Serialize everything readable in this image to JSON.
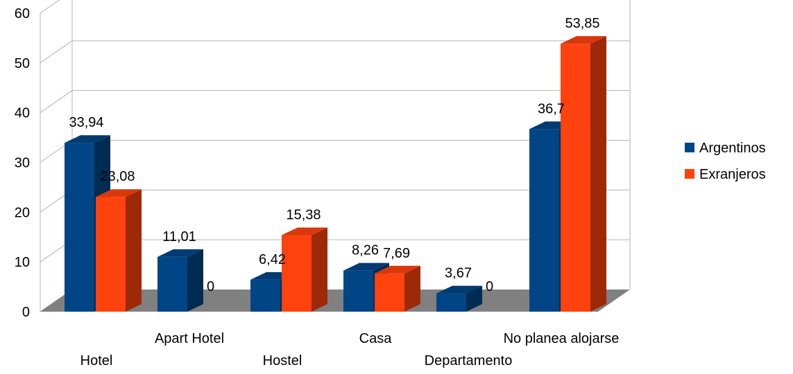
{
  "chart_data": {
    "type": "bar",
    "categories": [
      "Hotel",
      "Apart Hotel",
      "Hostel",
      "Casa",
      "Departamento",
      "No planea alojarse"
    ],
    "series": [
      {
        "name": "Argentinos",
        "values": [
          33.94,
          11.01,
          6.42,
          8.26,
          3.67,
          36.7
        ],
        "labels": [
          "33,94",
          "11,01",
          "6,42",
          "8,26",
          "3,67",
          "36,7"
        ],
        "color": "#004586"
      },
      {
        "name": "Exranjeros",
        "values": [
          23.08,
          0,
          15.38,
          7.69,
          0,
          53.85
        ],
        "labels": [
          "23,08",
          "0",
          "15,38",
          "7,69",
          "0",
          "53,85"
        ],
        "color": "#ff420e"
      }
    ],
    "ylim": [
      0,
      60
    ],
    "yticks": [
      "0",
      "10",
      "20",
      "30",
      "40",
      "50",
      "60"
    ],
    "legend": "right",
    "grid": true,
    "style": "3d"
  }
}
